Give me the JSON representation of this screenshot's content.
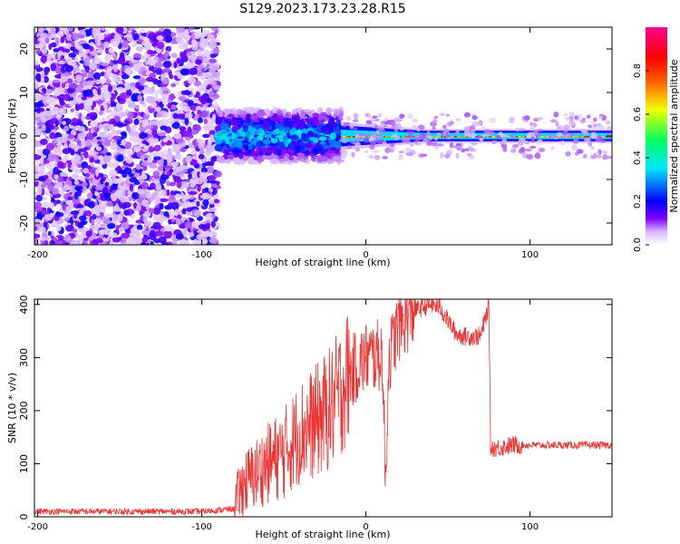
{
  "figure_title": "S129.2023.173.23.28.R15",
  "chart_data": [
    {
      "type": "heatmap",
      "title": "S129.2023.173.23.28.R15",
      "xlabel": "Height of straight line (km)",
      "ylabel": "Frequency (Hz)",
      "xlim": [
        -202,
        150
      ],
      "ylim": [
        -25,
        25
      ],
      "x_ticks": [
        -200,
        -100,
        0,
        100
      ],
      "y_ticks": [
        -20,
        -10,
        0,
        10,
        20
      ],
      "colorbar": {
        "label": "Normalized spectral amplitude",
        "range": [
          0,
          1
        ],
        "ticks": [
          0.0,
          0.2,
          0.4,
          0.6,
          0.8
        ],
        "colormap": "rainbow (white-purple-blue-cyan-green-yellow-red-magenta)"
      },
      "regions": [
        {
          "x_range": [
            -202,
            -90
          ],
          "description": "broadband scattered noise, amplitude ~0.05-0.2, all frequencies"
        },
        {
          "x_range": [
            -90,
            -15
          ],
          "description": "turbulent signal around 0 Hz, spread ±6 Hz, amplitude up to ~0.35"
        },
        {
          "x_range": [
            -15,
            150
          ],
          "description": "narrow carrier line near 0 Hz, amplitude ~0.4-0.95"
        }
      ]
    },
    {
      "type": "line",
      "xlabel": "Height of straight line (km)",
      "ylabel": "SNR (10 * v/v)",
      "xlim": [
        -202,
        150
      ],
      "ylim": [
        0,
        410
      ],
      "x_ticks": [
        -200,
        -100,
        0,
        100
      ],
      "y_ticks": [
        0,
        100,
        200,
        300,
        400
      ],
      "color": "#ee3333",
      "series": [
        {
          "x": [
            -202,
            -150,
            -100,
            -80,
            -75,
            -60,
            -50,
            -40,
            -30,
            -20,
            -15,
            -10,
            0,
            10,
            12,
            14,
            20,
            30,
            40,
            45,
            50,
            55,
            60,
            70,
            75,
            76,
            80,
            90,
            100,
            120,
            150
          ],
          "values": [
            10,
            10,
            10,
            15,
            60,
            100,
            120,
            160,
            180,
            210,
            240,
            270,
            300,
            305,
            60,
            300,
            360,
            390,
            400,
            395,
            370,
            345,
            340,
            340,
            400,
            130,
            130,
            135,
            135,
            135,
            135
          ]
        }
      ]
    }
  ]
}
